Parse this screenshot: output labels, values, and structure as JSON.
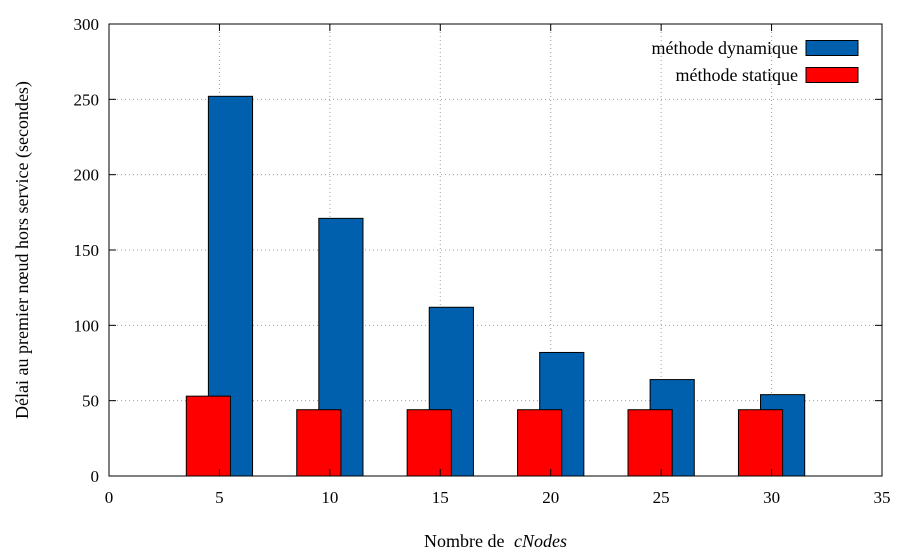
{
  "chart_data": {
    "type": "bar",
    "title": "",
    "xlabel": "Nombre de",
    "xlabel_italic": "cNodes",
    "ylabel": "Délai au premier nœud hors service (secondes)",
    "xlim": [
      0,
      35
    ],
    "ylim": [
      0,
      300
    ],
    "xticks": [
      "0",
      "5",
      "10",
      "15",
      "20",
      "25",
      "30",
      "35"
    ],
    "yticks": [
      "0",
      "50",
      "100",
      "150",
      "200",
      "250",
      "300"
    ],
    "grid": true,
    "legend_position": "top-right",
    "categories": [
      5,
      10,
      15,
      20,
      25,
      30
    ],
    "series": [
      {
        "name": "méthode dynamique",
        "color": "#0060ad",
        "values": [
          252,
          171,
          112,
          82,
          64,
          54
        ]
      },
      {
        "name": "méthode statique",
        "color": "#ff0000",
        "values": [
          53,
          44,
          44,
          44,
          44,
          44
        ]
      }
    ]
  }
}
